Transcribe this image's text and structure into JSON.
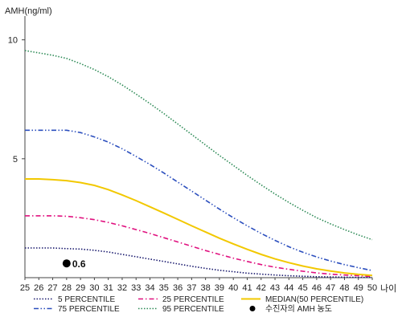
{
  "chart_data": {
    "type": "line",
    "title": "",
    "ylabel": "AMH(ng/ml)",
    "xlabel": "나이",
    "x": [
      25,
      26,
      27,
      28,
      29,
      30,
      31,
      32,
      33,
      34,
      35,
      36,
      37,
      38,
      39,
      40,
      41,
      42,
      43,
      44,
      45,
      46,
      47,
      48,
      49,
      50
    ],
    "xlim": [
      25,
      50
    ],
    "ylim": [
      0,
      11
    ],
    "yticks": [
      5,
      10
    ],
    "grid": false,
    "legend_position": "bottom",
    "series": [
      {
        "name": "5 PERCENTILE",
        "color": "#1a1a6e",
        "dash": "dotted",
        "values": [
          1.25,
          1.25,
          1.25,
          1.22,
          1.2,
          1.15,
          1.08,
          0.98,
          0.88,
          0.78,
          0.68,
          0.58,
          0.48,
          0.39,
          0.31,
          0.25,
          0.19,
          0.15,
          0.11,
          0.08,
          0.06,
          0.04,
          0.03,
          0.02,
          0.01,
          0.01
        ]
      },
      {
        "name": "25 PERCENTILE",
        "color": "#e0117f",
        "dash": "dashdot",
        "values": [
          2.6,
          2.6,
          2.6,
          2.58,
          2.52,
          2.44,
          2.32,
          2.18,
          2.02,
          1.86,
          1.68,
          1.5,
          1.32,
          1.14,
          0.98,
          0.82,
          0.68,
          0.55,
          0.44,
          0.35,
          0.27,
          0.2,
          0.15,
          0.11,
          0.08,
          0.05
        ]
      },
      {
        "name": "MEDIAN(50 PERCENTILE)",
        "color": "#f2c800",
        "dash": "solid",
        "values": [
          4.15,
          4.15,
          4.12,
          4.08,
          4.0,
          3.88,
          3.7,
          3.48,
          3.24,
          2.98,
          2.72,
          2.45,
          2.18,
          1.92,
          1.66,
          1.42,
          1.19,
          0.98,
          0.79,
          0.63,
          0.49,
          0.37,
          0.28,
          0.2,
          0.14,
          0.09
        ]
      },
      {
        "name": "75 PERCENTILE",
        "color": "#2c4fbe",
        "dash": "dashdotdot",
        "values": [
          6.2,
          6.2,
          6.2,
          6.2,
          6.1,
          5.92,
          5.7,
          5.42,
          5.1,
          4.76,
          4.4,
          4.02,
          3.64,
          3.26,
          2.88,
          2.52,
          2.18,
          1.86,
          1.57,
          1.3,
          1.07,
          0.87,
          0.7,
          0.55,
          0.42,
          0.3
        ]
      },
      {
        "name": "95 PERCENTILE",
        "color": "#2e8b57",
        "dash": "dotted",
        "values": [
          9.55,
          9.45,
          9.35,
          9.22,
          9.0,
          8.75,
          8.45,
          8.1,
          7.72,
          7.32,
          6.9,
          6.46,
          6.02,
          5.58,
          5.14,
          4.72,
          4.3,
          3.9,
          3.52,
          3.16,
          2.83,
          2.52,
          2.26,
          2.02,
          1.8,
          1.6
        ]
      }
    ],
    "points": [
      {
        "name": "수진자의 AMH 농도",
        "x": 28,
        "y": 0.6,
        "label": "0.6",
        "color": "#000000"
      }
    ]
  }
}
